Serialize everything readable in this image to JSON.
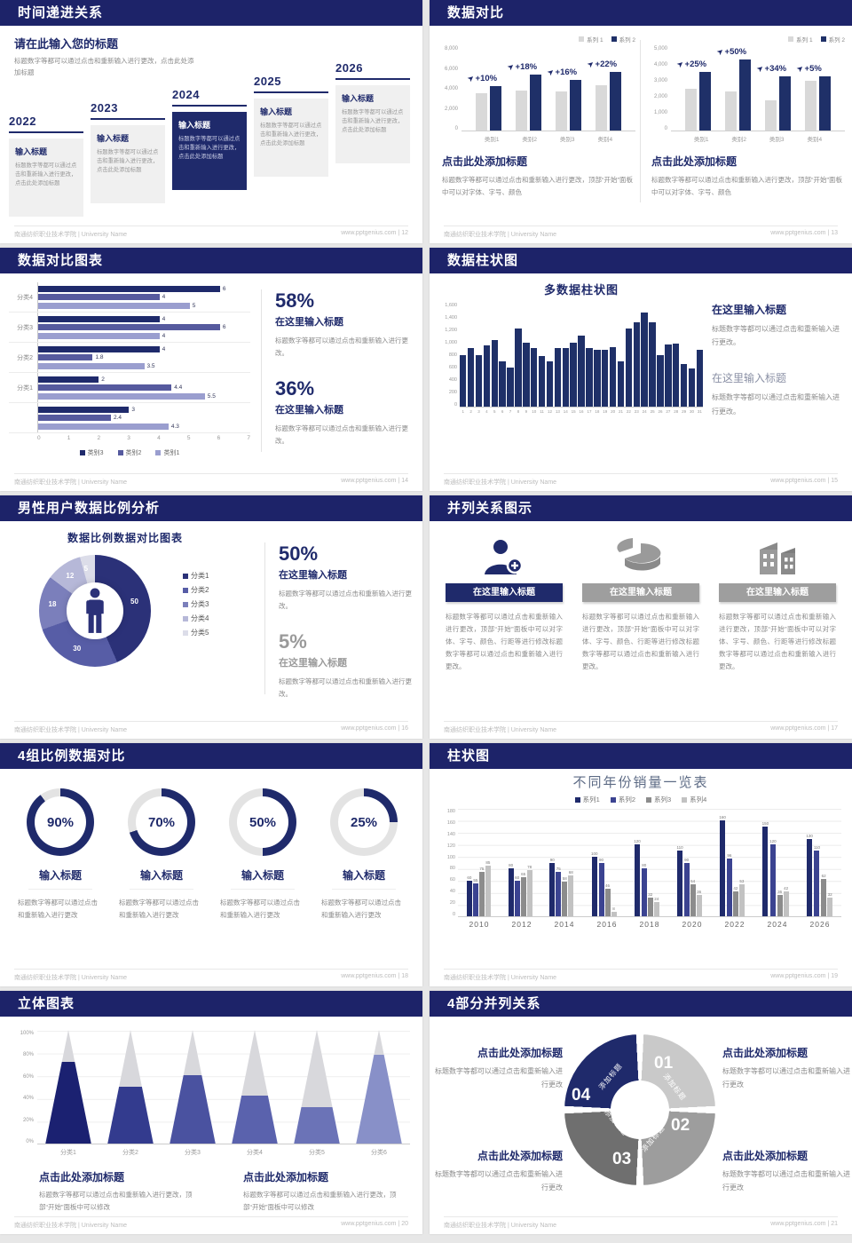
{
  "colors": {
    "navy": "#1f2a6b",
    "barNavy": "#1f3068",
    "indigo": "#3b4391",
    "medPurple": "#565a9e",
    "lightPurple": "#9a9ecf",
    "grayBar": "#d9d9d9",
    "darkGrayBar": "#8c8c8c",
    "lightGrayBar": "#c2c2c2"
  },
  "footer": {
    "left": "南通纺织职业技术学院 | University Name",
    "site": "www.pptgenius.com",
    "sep": "|"
  },
  "slides": {
    "s12": {
      "header": "时间递进关系",
      "page": "12",
      "intro_title": "请在此输入您的标题",
      "intro_body": "标题数字等都可以通过点击和重新输入进行更改，点击此处添加标题",
      "timeline": [
        {
          "year": "2022",
          "title": "输入标题",
          "body": "标题数字等都可以通过点击和重新输入进行更改，点击此处添加标题",
          "highlight": false
        },
        {
          "year": "2023",
          "title": "输入标题",
          "body": "标题数字等都可以通过点击和重新输入进行更改，点击此处添加标题",
          "highlight": false
        },
        {
          "year": "2024",
          "title": "输入标题",
          "body": "标题数字等都可以通过点击和重新输入进行更改，点击此处添加标题",
          "highlight": true
        },
        {
          "year": "2025",
          "title": "输入标题",
          "body": "标题数字等都可以通过点击和重新输入进行更改，点击此处添加标题",
          "highlight": false
        },
        {
          "year": "2026",
          "title": "输入标题",
          "body": "标题数字等都可以通过点击和重新输入进行更改，点击此处添加标题",
          "highlight": false
        }
      ]
    },
    "s13": {
      "header": "数据对比",
      "page": "13",
      "charts": [
        {
          "type": "bar",
          "legend": [
            "系列 1",
            "系列 2"
          ],
          "ymax": 8000,
          "yticks": [
            "8,000",
            "6,000",
            "4,000",
            "2,000",
            "0"
          ],
          "categories": [
            "类别1",
            "类别2",
            "类别3",
            "类别4"
          ],
          "series1": [
            3500,
            3800,
            3700,
            4300
          ],
          "series2": [
            4200,
            5300,
            4800,
            5600
          ],
          "annotations": [
            "+10%",
            "+18%",
            "+16%",
            "+22%"
          ],
          "heading": "点击此处添加标题",
          "body": "标题数字等都可以通过点击和重新输入进行更改，顶部“开始”面板中可以对字体、字号、颜色"
        },
        {
          "type": "bar",
          "legend": [
            "系列 1",
            "系列 2"
          ],
          "ymax": 5000,
          "yticks": [
            "5,000",
            "4,000",
            "3,000",
            "2,000",
            "1,000",
            "0"
          ],
          "categories": [
            "类别1",
            "类别2",
            "类别3",
            "类别4"
          ],
          "series1": [
            2500,
            2300,
            1800,
            2950
          ],
          "series2": [
            3500,
            4200,
            3200,
            3200
          ],
          "annotations": [
            "+25%",
            "+50%",
            "+34%",
            "+5%"
          ],
          "heading": "点击此处添加标题",
          "body": "标题数字等都可以通过点击和重新输入进行更改，顶部“开始”面板中可以对字体、字号、颜色"
        }
      ]
    },
    "s14": {
      "header": "数据对比图表",
      "page": "14",
      "chart": {
        "type": "bar-horizontal",
        "xmax": 7,
        "xticks": [
          "0",
          "1",
          "2",
          "3",
          "4",
          "5",
          "6",
          "7"
        ],
        "legend": [
          "类别3",
          "类别2",
          "类别1"
        ],
        "groups": [
          {
            "label": "分类4",
            "values": [
              6,
              4,
              5
            ]
          },
          {
            "label": "分类3",
            "values": [
              4,
              6,
              4
            ]
          },
          {
            "label": "分类2",
            "values": [
              4,
              1.8,
              3.5
            ]
          },
          {
            "label": "分类1",
            "values": [
              2,
              4.4,
              5.5
            ]
          },
          {
            "label": "",
            "values": [
              3,
              2.4,
              4.3
            ]
          }
        ]
      },
      "stats": [
        {
          "value": "58%",
          "title": "在这里输入标题",
          "body": "标题数字等都可以通过点击和重新输入进行更改。"
        },
        {
          "value": "36%",
          "title": "在这里输入标题",
          "body": "标题数字等都可以通过点击和重新输入进行更改。"
        }
      ]
    },
    "s15": {
      "header": "数据柱状图",
      "page": "15",
      "chart": {
        "type": "bar",
        "title": "多数据柱状图",
        "ymax": 1600,
        "yticks": [
          "1,600",
          "1,400",
          "1,200",
          "1,000",
          "800",
          "600",
          "400",
          "200",
          "0"
        ],
        "values": [
          800,
          900,
          800,
          950,
          1020,
          700,
          600,
          1200,
          980,
          900,
          780,
          700,
          900,
          900,
          990,
          1100,
          900,
          880,
          880,
          910,
          700,
          1200,
          1300,
          1450,
          1300,
          800,
          960,
          970,
          660,
          590,
          870
        ]
      },
      "blocks": [
        {
          "title": "在这里输入标题",
          "body": "标题数字等都可以通过点击和重新输入进行更改。",
          "muted": false
        },
        {
          "title": "在这里输入标题",
          "body": "标题数字等都可以通过点击和重新输入进行更改。",
          "muted": true
        }
      ]
    },
    "s16": {
      "header": "男性用户数据比例分析",
      "page": "16",
      "chart": {
        "type": "pie",
        "title": "数据比例数据对比图表",
        "values": [
          50,
          30,
          18,
          12,
          5
        ],
        "labels": [
          "50",
          "30",
          "18",
          "12",
          "5"
        ],
        "legend": [
          "分类1",
          "分类2",
          "分类3",
          "分类4",
          "分类5"
        ],
        "colors": [
          "#2b3178",
          "#575da6",
          "#7b7fbb",
          "#b6b8d8",
          "#dcdde9"
        ]
      },
      "stats": [
        {
          "value": "50%",
          "title": "在这里输入标题",
          "body": "标题数字等都可以通过点击和重新输入进行更改。",
          "muted": false
        },
        {
          "value": "5%",
          "title": "在这里输入标题",
          "body": "标题数字等都可以通过点击和重新输入进行更改。",
          "muted": true
        }
      ]
    },
    "s17": {
      "header": "并列关系图示",
      "page": "17",
      "columns": [
        {
          "icon": "person-add-icon",
          "title": "在这里输入标题",
          "body": "标题数字等都可以通过点击和重新输入进行更改，顶部“开始”面板中可以对字体、字号、颜色、行距等进行修改标题数字等都可以通过点击和重新输入进行更改。",
          "accent": true
        },
        {
          "icon": "pie-3d-icon",
          "title": "在这里输入标题",
          "body": "标题数字等都可以通过点击和重新输入进行更改，顶部“开始”面板中可以对字体、字号、颜色、行距等进行修改标题数字等都可以通过点击和重新输入进行更改。",
          "accent": false
        },
        {
          "icon": "building-icon",
          "title": "在这里输入标题",
          "body": "标题数字等都可以通过点击和重新输入进行更改，顶部“开始”面板中可以对字体、字号、颜色、行距等进行修改标题数字等都可以通过点击和重新输入进行更改。",
          "accent": false
        }
      ]
    },
    "s18": {
      "header": "4组比例数据对比",
      "page": "18",
      "gauges": [
        {
          "pct": 90,
          "label": "90%",
          "title": "输入标题",
          "body": "标题数字等都可以通过点击和重新输入进行更改"
        },
        {
          "pct": 70,
          "label": "70%",
          "title": "输入标题",
          "body": "标题数字等都可以通过点击和重新输入进行更改"
        },
        {
          "pct": 50,
          "label": "50%",
          "title": "输入标题",
          "body": "标题数字等都可以通过点击和重新输入进行更改"
        },
        {
          "pct": 25,
          "label": "25%",
          "title": "输入标题",
          "body": "标题数字等都可以通过点击和重新输入进行更改"
        }
      ]
    },
    "s19": {
      "header": "柱状图",
      "page": "19",
      "chart": {
        "type": "bar",
        "title": "不同年份销量一览表",
        "ymax": 180,
        "yticks": [
          "180",
          "160",
          "140",
          "120",
          "100",
          "80",
          "60",
          "40",
          "20",
          "0"
        ],
        "categories": [
          "2010",
          "2012",
          "2014",
          "2016",
          "2018",
          "2020",
          "2022",
          "2024",
          "2026"
        ],
        "series": [
          {
            "name": "系列1",
            "color": "#1f2a6b",
            "values": [
              60,
              80,
              90,
              100,
              120,
              110,
              160,
              150,
              130
            ]
          },
          {
            "name": "系列2",
            "color": "#3b4391",
            "values": [
              55,
              60,
              75,
              90,
              80,
              90,
              96,
              120,
              110
            ]
          },
          {
            "name": "系列3",
            "color": "#8c8c8c",
            "values": [
              75,
              65,
              58,
              46,
              32,
              54,
              42,
              36,
              62
            ]
          },
          {
            "name": "系列4",
            "color": "#c2c2c2",
            "values": [
              85,
              78,
              68,
              8,
              24,
              36,
              53,
              42,
              32
            ]
          }
        ]
      }
    },
    "s20": {
      "header": "立体图表",
      "page": "20",
      "chart": {
        "type": "cone",
        "yticks": [
          "100%",
          "80%",
          "60%",
          "40%",
          "20%",
          "0%"
        ],
        "categories": [
          "分类1",
          "分类2",
          "分类3",
          "分类4",
          "分类5",
          "分类6"
        ],
        "fill_pct": [
          72,
          50,
          60,
          42,
          32,
          78
        ],
        "colors": [
          "#1b2171",
          "#333b8e",
          "#4a52a0",
          "#5a62ad",
          "#6b73b7",
          "#8890c8"
        ]
      },
      "blocks": [
        {
          "title": "点击此处添加标题",
          "body": "标题数字等都可以通过点击和重新输入进行更改，顶部“开始”面板中可以修改"
        },
        {
          "title": "点击此处添加标题",
          "body": "标题数字等都可以通过点击和重新输入进行更改，顶部“开始”面板中可以修改"
        }
      ]
    },
    "s21": {
      "header": "4部分并列关系",
      "page": "21",
      "ring": {
        "segments": [
          {
            "num": "01",
            "label": "添加标题",
            "color": "#c9c9c9"
          },
          {
            "num": "02",
            "label": "添加标题",
            "color": "#9d9d9d"
          },
          {
            "num": "03",
            "label": "添加标题",
            "color": "#6f6f6f"
          },
          {
            "num": "04",
            "label": "添加标题",
            "color": "#1f2a6b"
          }
        ]
      },
      "blocks": [
        {
          "title": "点击此处添加标题",
          "body": "标题数字等都可以通过点击和重新输入进行更改"
        },
        {
          "title": "点击此处添加标题",
          "body": "标题数字等都可以通过点击和重新输入进行更改"
        },
        {
          "title": "点击此处添加标题",
          "body": "标题数字等都可以通过点击和重新输入进行更改"
        },
        {
          "title": "点击此处添加标题",
          "body": "标题数字等都可以通过点击和重新输入进行更改"
        }
      ]
    }
  }
}
